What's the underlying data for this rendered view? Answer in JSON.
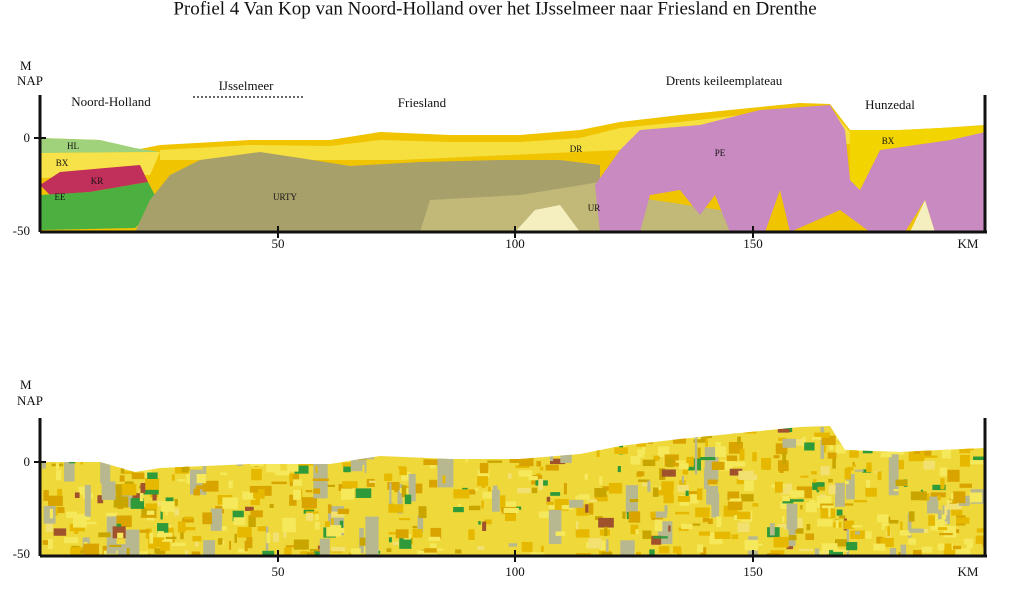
{
  "title": "Profiel 4 Van Kop van Noord-Holland over het IJsselmeer naar Friesland en Drenthe",
  "profiles": [
    {
      "axis_label": [
        "M",
        "NAP"
      ],
      "y_ticks": [
        "0",
        "-50"
      ],
      "x_ticks": [
        "50",
        "100",
        "150"
      ],
      "x_unit": "KM",
      "regions": [
        "Noord-Holland",
        "IJsselmeer",
        "Friesland",
        "Drents keileemplateau",
        "Hunzedal"
      ],
      "units": [
        "HL",
        "BX",
        "KR",
        "EE",
        "URTY",
        "DR",
        "UR",
        "PE",
        "BX"
      ]
    },
    {
      "axis_label": [
        "M",
        "NAP"
      ],
      "y_ticks": [
        "0",
        "-50"
      ],
      "x_ticks": [
        "50",
        "100",
        "150"
      ],
      "x_unit": "KM"
    }
  ]
}
